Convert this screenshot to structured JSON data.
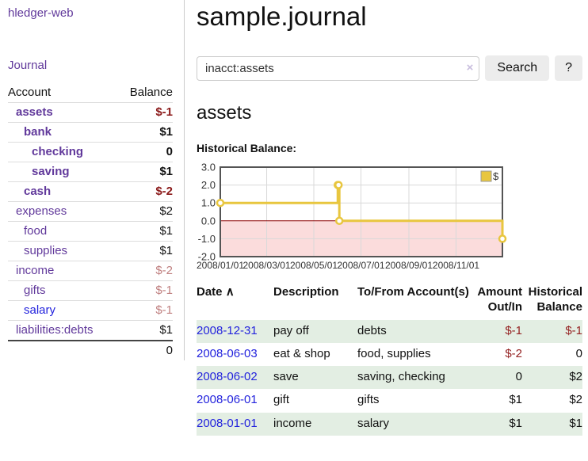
{
  "app": {
    "title": "hledger-web"
  },
  "sidebar": {
    "journal_link": "Journal",
    "headers": {
      "account": "Account",
      "balance": "Balance"
    },
    "accounts": [
      {
        "name": "assets",
        "balance": "$-1"
      },
      {
        "name": "bank",
        "balance": "$1"
      },
      {
        "name": "checking",
        "balance": "0"
      },
      {
        "name": "saving",
        "balance": "$1"
      },
      {
        "name": "cash",
        "balance": "$-2"
      },
      {
        "name": "expenses",
        "balance": "$2"
      },
      {
        "name": "food",
        "balance": "$1"
      },
      {
        "name": "supplies",
        "balance": "$1"
      },
      {
        "name": "income",
        "balance": "$-2"
      },
      {
        "name": "gifts",
        "balance": "$-1"
      },
      {
        "name": "salary",
        "balance": "$-1"
      },
      {
        "name": "liabilities:debts",
        "balance": "$1"
      }
    ],
    "total": "0"
  },
  "main": {
    "title": "sample.journal",
    "search": {
      "value": "inacct:assets",
      "clear_icon": "×",
      "button": "Search",
      "help_button": "?"
    },
    "account_heading": "assets",
    "chart_label": "Historical Balance:",
    "register": {
      "headers": {
        "date": "Date",
        "sort_caret": "∧",
        "description": "Description",
        "accounts": "To/From Account(s)",
        "amount": "Amount Out/In",
        "balance": "Historical Balance"
      },
      "rows": [
        {
          "date": "2008-12-31",
          "description": "pay off",
          "accounts": "debts",
          "amount": "$-1",
          "balance": "$-1"
        },
        {
          "date": "2008-06-03",
          "description": "eat & shop",
          "accounts": "food, supplies",
          "amount": "$-2",
          "balance": "0"
        },
        {
          "date": "2008-06-02",
          "description": "save",
          "accounts": "saving, checking",
          "amount": "0",
          "balance": "$2"
        },
        {
          "date": "2008-06-01",
          "description": "gift",
          "accounts": "gifts",
          "amount": "$1",
          "balance": "$2"
        },
        {
          "date": "2008-01-01",
          "description": "income",
          "accounts": "salary",
          "amount": "$1",
          "balance": "$1"
        }
      ]
    }
  },
  "chart_data": {
    "type": "line",
    "title": "Historical Balance:",
    "step": true,
    "series": [
      {
        "name": "$",
        "color": "#e8c63f",
        "points": [
          [
            "2008-01-01",
            1
          ],
          [
            "2008-06-01",
            2
          ],
          [
            "2008-06-02",
            2
          ],
          [
            "2008-06-03",
            0
          ],
          [
            "2008-12-31",
            -1
          ]
        ]
      }
    ],
    "x_range": [
      "2008-01-01",
      "2008-12-31"
    ],
    "x_ticks": [
      "2008/01/01",
      "2008/03/01",
      "2008/05/01",
      "2008/07/01",
      "2008/09/01",
      "2008/11/01"
    ],
    "y_ticks": [
      3.0,
      2.0,
      1.0,
      0.0,
      -1.0,
      -2.0
    ],
    "ylim": [
      -2,
      3
    ],
    "legend": {
      "label": "$",
      "position": "top-right"
    },
    "grid": true,
    "negative_fill": "#fbdcdc",
    "zero_line_color": "#8b0000",
    "border_color": "#545454"
  },
  "colors": {
    "link_purple": "#61399b",
    "link_blue": "#2323dd",
    "negative_strong": "#8b1a1a",
    "negative_soft": "#c08080",
    "table_negative": "#942222",
    "row_green": "#e3eee3",
    "series_yellow": "#e8c63f"
  }
}
